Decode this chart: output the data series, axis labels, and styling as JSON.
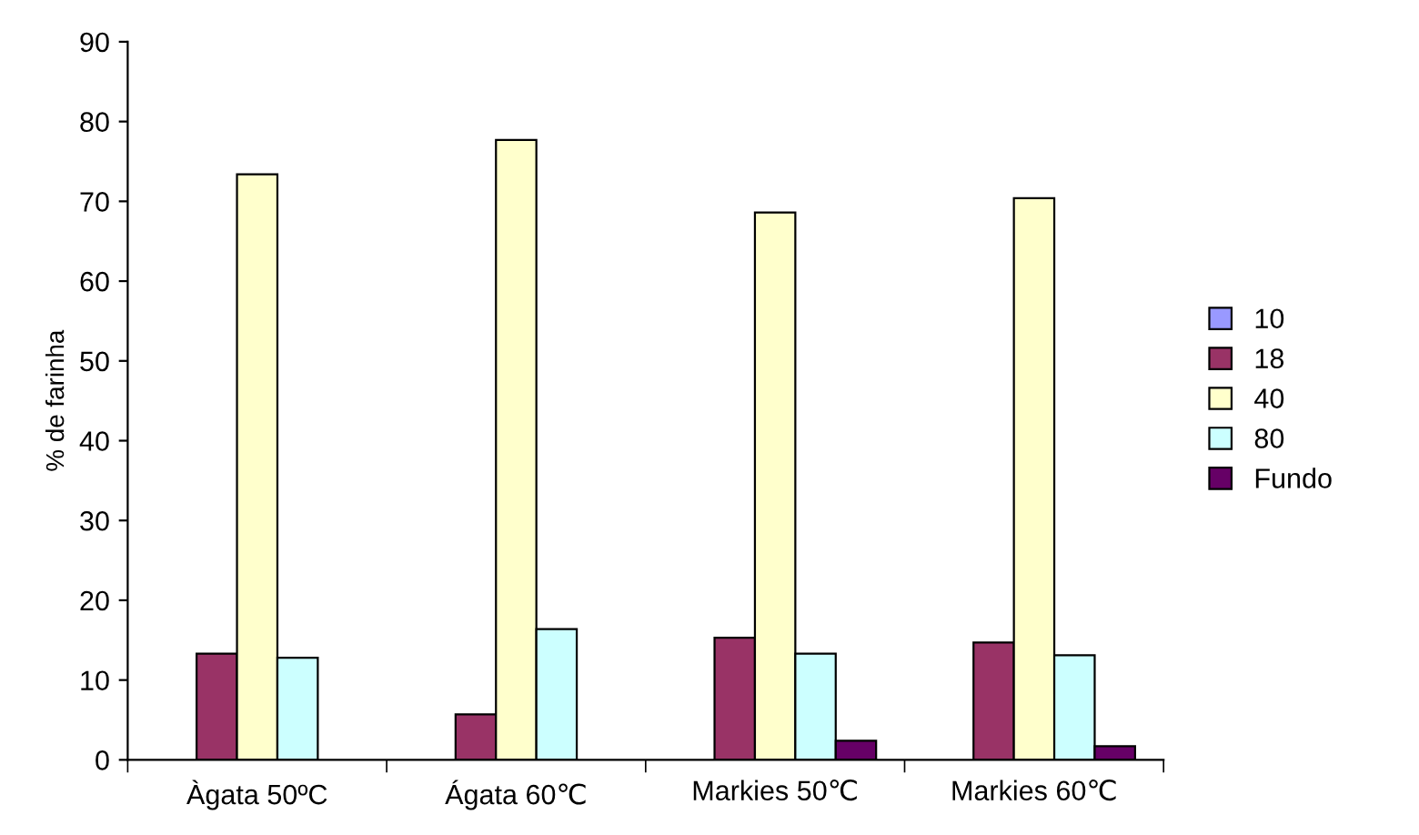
{
  "chart_data": {
    "type": "bar",
    "ylabel": "% de farinha",
    "categories": [
      "Àgata 50ºC",
      "Ágata 60℃",
      "Markies 50℃",
      "Markies 60℃"
    ],
    "series": [
      {
        "name": "10",
        "color": "#9999ff",
        "values": [
          null,
          null,
          null,
          null
        ]
      },
      {
        "name": "18",
        "color": "#993366",
        "values": [
          13.3,
          5.7,
          15.3,
          14.7
        ]
      },
      {
        "name": "40",
        "color": "#ffffcc",
        "values": [
          73.4,
          77.7,
          68.6,
          70.4
        ]
      },
      {
        "name": "80",
        "color": "#ccffff",
        "values": [
          12.8,
          16.4,
          13.3,
          13.1
        ]
      },
      {
        "name": "Fundo",
        "color": "#660066",
        "values": [
          null,
          null,
          2.4,
          1.7
        ]
      }
    ],
    "ylim": [
      0,
      90
    ],
    "yticks": [
      0,
      10,
      20,
      30,
      40,
      50,
      60,
      70,
      80,
      90
    ],
    "grid": false,
    "legend": "right"
  }
}
